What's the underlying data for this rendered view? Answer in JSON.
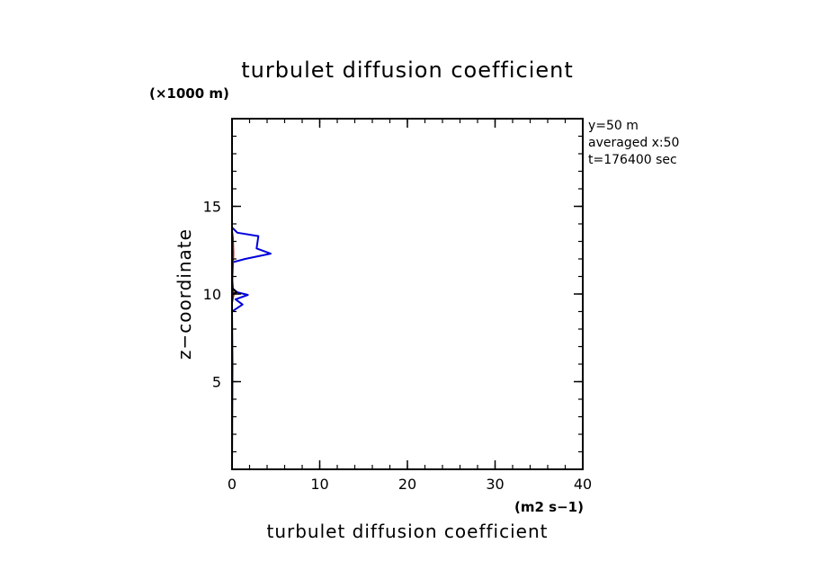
{
  "chart_data": {
    "type": "line",
    "title": "turbulet diffusion coefficient",
    "xlabel": "turbulet diffusion coefficient",
    "ylabel": "z−coordinate",
    "x_unit": "(m2 s−1)",
    "y_unit": "(×1000 m)",
    "xlim": [
      0,
      40
    ],
    "ylim": [
      0,
      20
    ],
    "x_ticks": [
      0,
      10,
      20,
      30,
      40
    ],
    "y_ticks": [
      5,
      10,
      15
    ],
    "x_minor_step": 2,
    "y_minor_step": 1,
    "grid": false,
    "annotations": [
      "y=50 m",
      "averaged  x:50",
      "t=176400 sec"
    ],
    "series": [
      {
        "color": "#0000dd",
        "points": [
          [
            0.0,
            0.0
          ],
          [
            0.05,
            6.0
          ],
          [
            0.0,
            9.0
          ],
          [
            0.3,
            9.1
          ],
          [
            1.2,
            9.4
          ],
          [
            0.4,
            9.7
          ],
          [
            1.8,
            9.95
          ],
          [
            0.6,
            10.1
          ],
          [
            0.1,
            10.3
          ],
          [
            0.0,
            11.0
          ],
          [
            0.0,
            11.8
          ],
          [
            1.5,
            12.0
          ],
          [
            4.4,
            12.3
          ],
          [
            2.8,
            12.6
          ],
          [
            3.0,
            13.3
          ],
          [
            0.6,
            13.5
          ],
          [
            0.0,
            13.8
          ],
          [
            0.0,
            20.0
          ]
        ]
      },
      {
        "color": "#cc0000",
        "points": [
          [
            0.0,
            0.0
          ],
          [
            0.0,
            9.5
          ],
          [
            0.2,
            10.0
          ],
          [
            0.0,
            10.4
          ],
          [
            0.15,
            12.3
          ],
          [
            0.1,
            13.2
          ],
          [
            0.0,
            13.6
          ],
          [
            0.0,
            20.0
          ]
        ]
      },
      {
        "color": "#000000",
        "points": [
          [
            0.0,
            9.6
          ],
          [
            -0.1,
            9.95
          ],
          [
            0.5,
            10.1
          ],
          [
            0.2,
            10.25
          ],
          [
            -0.1,
            10.4
          ]
        ]
      }
    ]
  }
}
